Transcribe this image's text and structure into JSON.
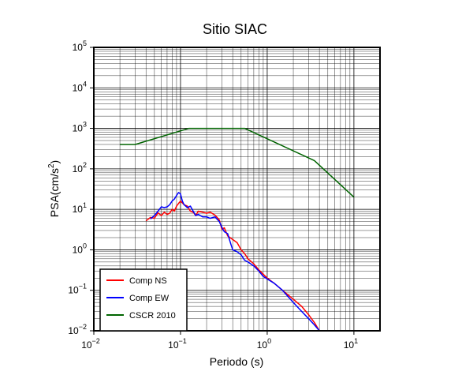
{
  "chart_data": {
    "type": "line",
    "title": "Sitio SIAC",
    "xlabel": "Periodo (s)",
    "ylabel": "PSA(cm/s²)",
    "x_scale": "log",
    "y_scale": "log",
    "xlim": [
      0.01,
      20
    ],
    "ylim": [
      0.01,
      100000
    ],
    "grid": true,
    "legend_position": "bottom-left",
    "x_ticks": [
      {
        "value": 0.01,
        "base": "10",
        "exp": "−2"
      },
      {
        "value": 0.1,
        "base": "10",
        "exp": "−1"
      },
      {
        "value": 1,
        "base": "10",
        "exp": "0"
      },
      {
        "value": 10,
        "base": "10",
        "exp": "1"
      }
    ],
    "y_ticks": [
      {
        "value": 0.01,
        "base": "10",
        "exp": "−2"
      },
      {
        "value": 0.1,
        "base": "10",
        "exp": "−1"
      },
      {
        "value": 1,
        "base": "10",
        "exp": "0"
      },
      {
        "value": 10,
        "base": "10",
        "exp": "1"
      },
      {
        "value": 100,
        "base": "10",
        "exp": "2"
      },
      {
        "value": 1000,
        "base": "10",
        "exp": "3"
      },
      {
        "value": 10000,
        "base": "10",
        "exp": "4"
      },
      {
        "value": 100000,
        "base": "10",
        "exp": "5"
      }
    ],
    "series": [
      {
        "name": "Comp NS",
        "color": "#ff0000",
        "points": [
          [
            0.04,
            5.2
          ],
          [
            0.045,
            6.3
          ],
          [
            0.05,
            6.0
          ],
          [
            0.055,
            8.2
          ],
          [
            0.06,
            7.0
          ],
          [
            0.065,
            8.5
          ],
          [
            0.07,
            7.5
          ],
          [
            0.075,
            8.0
          ],
          [
            0.08,
            10.0
          ],
          [
            0.085,
            9.0
          ],
          [
            0.09,
            12.0
          ],
          [
            0.095,
            14.0
          ],
          [
            0.1,
            16.0
          ],
          [
            0.11,
            13.0
          ],
          [
            0.12,
            12.0
          ],
          [
            0.13,
            9.0
          ],
          [
            0.14,
            8.5
          ],
          [
            0.15,
            7.0
          ],
          [
            0.16,
            9.0
          ],
          [
            0.18,
            8.5
          ],
          [
            0.2,
            8.0
          ],
          [
            0.22,
            8.5
          ],
          [
            0.25,
            7.2
          ],
          [
            0.28,
            5.5
          ],
          [
            0.3,
            3.2
          ],
          [
            0.32,
            3.5
          ],
          [
            0.35,
            2.2
          ],
          [
            0.4,
            1.8
          ],
          [
            0.45,
            1.5
          ],
          [
            0.5,
            1.0
          ],
          [
            0.55,
            0.8
          ],
          [
            0.6,
            0.6
          ],
          [
            0.7,
            0.45
          ],
          [
            0.8,
            0.32
          ],
          [
            0.9,
            0.25
          ],
          [
            1.0,
            0.2
          ],
          [
            1.2,
            0.15
          ],
          [
            1.5,
            0.1
          ],
          [
            2.0,
            0.06
          ],
          [
            2.5,
            0.04
          ],
          [
            3.0,
            0.025
          ],
          [
            3.5,
            0.016
          ],
          [
            4.0,
            0.01
          ]
        ]
      },
      {
        "name": "Comp EW",
        "color": "#0000ff",
        "points": [
          [
            0.045,
            5.8
          ],
          [
            0.05,
            7.0
          ],
          [
            0.055,
            9.0
          ],
          [
            0.06,
            11.5
          ],
          [
            0.065,
            11.0
          ],
          [
            0.07,
            11.5
          ],
          [
            0.075,
            13.0
          ],
          [
            0.08,
            16.0
          ],
          [
            0.085,
            18.0
          ],
          [
            0.09,
            22.0
          ],
          [
            0.095,
            26.0
          ],
          [
            0.1,
            24.0
          ],
          [
            0.105,
            16.0
          ],
          [
            0.11,
            13.0
          ],
          [
            0.12,
            11.0
          ],
          [
            0.13,
            12.0
          ],
          [
            0.14,
            9.0
          ],
          [
            0.15,
            7.0
          ],
          [
            0.16,
            7.5
          ],
          [
            0.18,
            6.5
          ],
          [
            0.2,
            6.5
          ],
          [
            0.22,
            6.0
          ],
          [
            0.25,
            6.5
          ],
          [
            0.28,
            5.0
          ],
          [
            0.3,
            3.6
          ],
          [
            0.32,
            2.8
          ],
          [
            0.35,
            2.5
          ],
          [
            0.38,
            1.4
          ],
          [
            0.4,
            1.0
          ],
          [
            0.45,
            0.9
          ],
          [
            0.5,
            0.75
          ],
          [
            0.55,
            0.55
          ],
          [
            0.6,
            0.5
          ],
          [
            0.7,
            0.4
          ],
          [
            0.8,
            0.3
          ],
          [
            0.9,
            0.22
          ],
          [
            1.0,
            0.19
          ],
          [
            1.2,
            0.15
          ],
          [
            1.5,
            0.1
          ],
          [
            2.0,
            0.05
          ],
          [
            2.5,
            0.03
          ],
          [
            3.0,
            0.02
          ],
          [
            3.5,
            0.014
          ],
          [
            4.0,
            0.01
          ]
        ]
      },
      {
        "name": "CSCR 2010",
        "color": "#006400",
        "points": [
          [
            0.02,
            400
          ],
          [
            0.03,
            400
          ],
          [
            0.125,
            1000
          ],
          [
            0.55,
            1000
          ],
          [
            3.5,
            160
          ],
          [
            10.0,
            20
          ]
        ]
      }
    ]
  }
}
